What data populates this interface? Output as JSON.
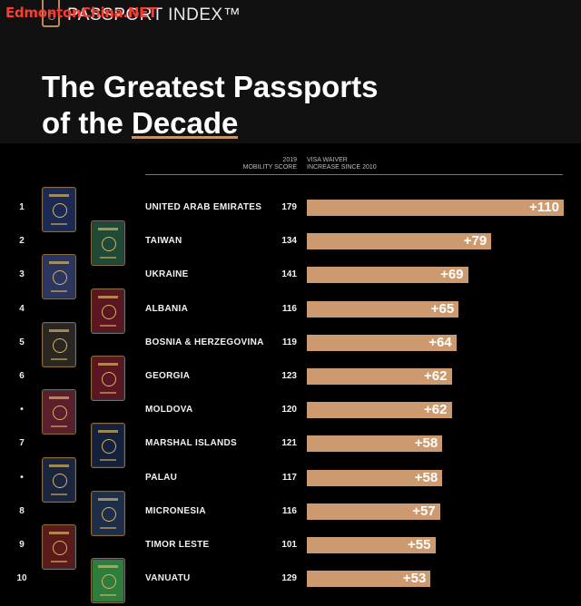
{
  "watermark": "EdmontonChina.NET",
  "brand": {
    "name": "PASSPORT INDEX™"
  },
  "title": {
    "line1": "The Greatest Passports",
    "line2_prefix": "of the ",
    "line2_highlight": "Decade"
  },
  "columns": {
    "score_line1": "2019",
    "score_line2": "MOBILITY SCORE",
    "increase_line1": "VISA WAIVER",
    "increase_line2": "INCREASE SINCE 2010"
  },
  "colors": {
    "bar": "#cc9a6e",
    "background": "#000000",
    "highlight": "#c79465"
  },
  "rows": [
    {
      "rank": "1",
      "country": "UNITED ARAB EMIRATES",
      "score": "179",
      "increase_label": "+110"
    },
    {
      "rank": "2",
      "country": "TAIWAN",
      "score": "134",
      "increase_label": "+79"
    },
    {
      "rank": "3",
      "country": "UKRAINE",
      "score": "141",
      "increase_label": "+69"
    },
    {
      "rank": "4",
      "country": "ALBANIA",
      "score": "116",
      "increase_label": "+65"
    },
    {
      "rank": "5",
      "country": "BOSNIA & HERZEGOVINA",
      "score": "119",
      "increase_label": "+64"
    },
    {
      "rank": "6",
      "country": "GEORGIA",
      "score": "123",
      "increase_label": "+62"
    },
    {
      "rank": "•",
      "country": "MOLDOVA",
      "score": "120",
      "increase_label": "+62"
    },
    {
      "rank": "7",
      "country": "MARSHAL ISLANDS",
      "score": "121",
      "increase_label": "+58"
    },
    {
      "rank": "•",
      "country": "PALAU",
      "score": "117",
      "increase_label": "+58"
    },
    {
      "rank": "8",
      "country": "MICRONESIA",
      "score": "116",
      "increase_label": "+57"
    },
    {
      "rank": "9",
      "country": "TIMOR LESTE",
      "score": "101",
      "increase_label": "+55"
    },
    {
      "rank": "10",
      "country": "VANUATU",
      "score": "129",
      "increase_label": "+53"
    }
  ],
  "passport_colors": [
    "#1b2a55",
    "#1f4a35",
    "#2a3560",
    "#5a1722",
    "#2a2622",
    "#5a1722",
    "#5a1f2a",
    "#14213d",
    "#1a2540",
    "#1c2e4a",
    "#5a1a1a",
    "#2e7d3c"
  ],
  "chart_data": {
    "type": "bar",
    "orientation": "horizontal",
    "categories": [
      "UNITED ARAB EMIRATES",
      "TAIWAN",
      "UKRAINE",
      "ALBANIA",
      "BOSNIA & HERZEGOVINA",
      "GEORGIA",
      "MOLDOVA",
      "MARSHAL ISLANDS",
      "PALAU",
      "MICRONESIA",
      "TIMOR LESTE",
      "VANUATU"
    ],
    "series": [
      {
        "name": "VISA WAIVER INCREASE SINCE 2010",
        "values": [
          110,
          79,
          69,
          65,
          64,
          62,
          62,
          58,
          58,
          57,
          55,
          53
        ]
      },
      {
        "name": "2019 MOBILITY SCORE",
        "values": [
          179,
          134,
          141,
          116,
          119,
          123,
          120,
          121,
          117,
          116,
          101,
          129
        ]
      }
    ],
    "title": "The Greatest Passports of the Decade",
    "xlim": [
      0,
      110
    ],
    "grid": false,
    "legend": "none"
  }
}
